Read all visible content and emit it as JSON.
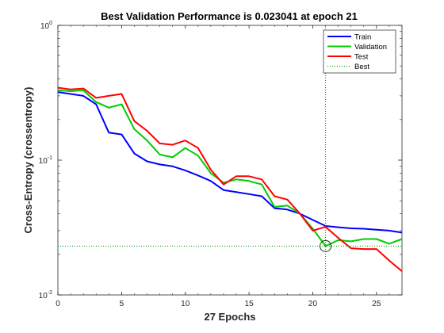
{
  "chart_data": {
    "type": "line",
    "title": "Best Validation Performance is 0.023041 at epoch 21",
    "xlabel": "27 Epochs",
    "ylabel": "Cross-Entropy  (crossentropy)",
    "xlim": [
      0,
      27
    ],
    "ylim": [
      0.01,
      1
    ],
    "yscale": "log",
    "grid": false,
    "legend_position": "top-right",
    "x_ticks": [
      "0",
      "5",
      "10",
      "15",
      "20",
      "25"
    ],
    "y_ticks": [
      {
        "base": "10",
        "exp": "0"
      },
      {
        "base": "10",
        "exp": "-1"
      },
      {
        "base": "10",
        "exp": "-2"
      }
    ],
    "x": [
      0,
      1,
      2,
      3,
      4,
      5,
      6,
      7,
      8,
      9,
      10,
      11,
      12,
      13,
      14,
      15,
      16,
      17,
      18,
      19,
      20,
      21,
      22,
      23,
      24,
      25,
      26,
      27
    ],
    "series": [
      {
        "name": "Train",
        "color": "#0000ff",
        "values": [
          0.32,
          0.31,
          0.3,
          0.26,
          0.16,
          0.155,
          0.112,
          0.098,
          0.093,
          0.09,
          0.084,
          0.077,
          0.07,
          0.06,
          0.058,
          0.056,
          0.054,
          0.044,
          0.043,
          0.04,
          0.036,
          0.0325,
          0.0318,
          0.0312,
          0.031,
          0.0305,
          0.03,
          0.029
        ]
      },
      {
        "name": "Validation",
        "color": "#00cc00",
        "values": [
          0.33,
          0.325,
          0.33,
          0.27,
          0.245,
          0.26,
          0.17,
          0.14,
          0.11,
          0.105,
          0.123,
          0.108,
          0.08,
          0.068,
          0.072,
          0.07,
          0.066,
          0.045,
          0.046,
          0.04,
          0.031,
          0.023041,
          0.0255,
          0.025,
          0.026,
          0.026,
          0.024,
          0.026
        ]
      },
      {
        "name": "Test",
        "color": "#ff0000",
        "values": [
          0.345,
          0.335,
          0.34,
          0.29,
          0.3,
          0.31,
          0.195,
          0.165,
          0.133,
          0.13,
          0.14,
          0.123,
          0.085,
          0.066,
          0.076,
          0.076,
          0.072,
          0.054,
          0.051,
          0.04,
          0.03,
          0.032,
          0.0265,
          0.0222,
          0.0219,
          0.0219,
          0.018,
          0.015
        ]
      }
    ],
    "best": {
      "name": "Best",
      "epoch": 21,
      "value": 0.023041,
      "color": "#008000"
    }
  }
}
